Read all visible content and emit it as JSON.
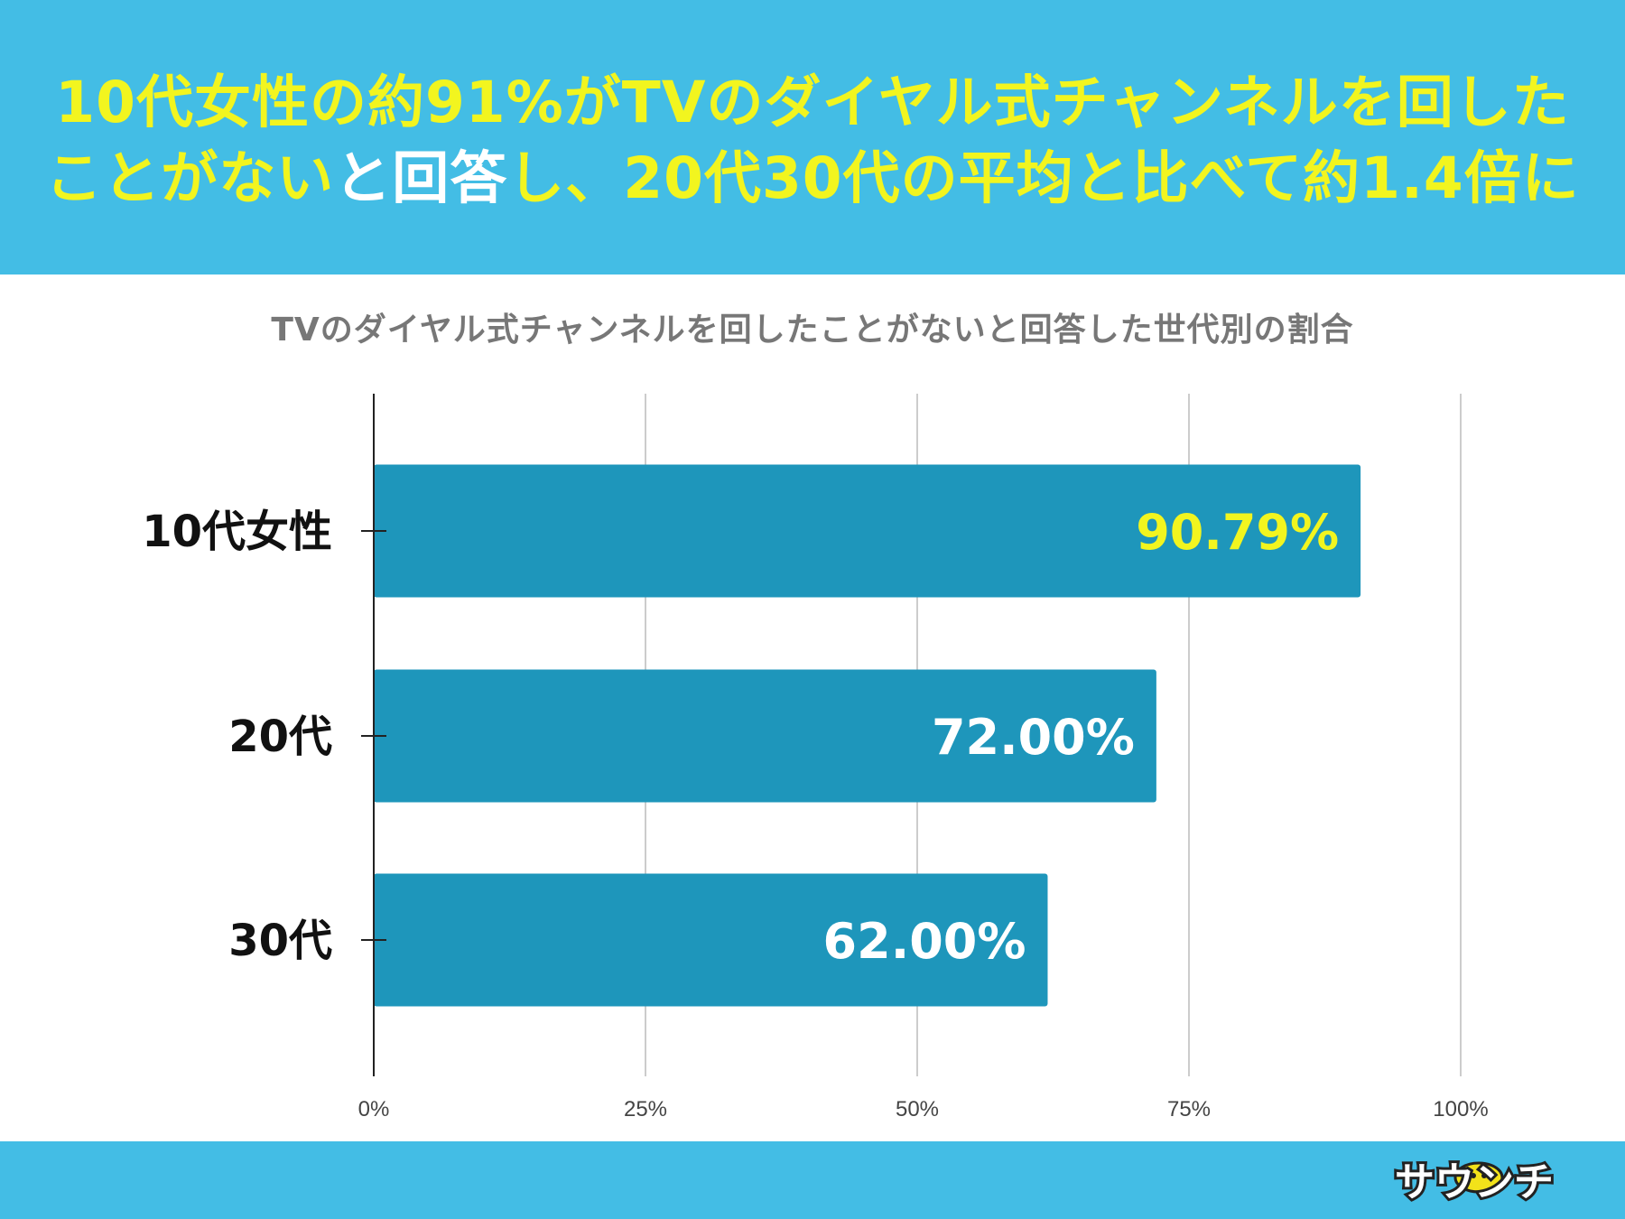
{
  "headline": {
    "line1": "10代女性の約91%がTVのダイヤル式チャンネルを回した",
    "line2_part1": "ことがない",
    "line2_part2": "と回答",
    "line2_part3": "し、20代30代の平均と比べて約1.4倍に"
  },
  "logo_text": "サウンチ",
  "colors": {
    "header_bg": "#43bde5",
    "headline_text": "#f2f51f",
    "bar": "#1e96bb",
    "highlight_label": "#f2f51f",
    "label": "#ffffff"
  },
  "chart_data": {
    "type": "bar",
    "orientation": "horizontal",
    "title": "TVのダイヤル式チャンネルを回したことがないと回答した世代別の割合",
    "categories": [
      "10代女性",
      "20代",
      "30代"
    ],
    "values": [
      90.79,
      72.0,
      62.0
    ],
    "value_labels": [
      "90.79%",
      "72.00%",
      "62.00%"
    ],
    "x_ticks": [
      "0%",
      "25%",
      "50%",
      "75%",
      "100%"
    ],
    "xlim": [
      0,
      100
    ],
    "grid": true,
    "highlight_index": 0
  }
}
